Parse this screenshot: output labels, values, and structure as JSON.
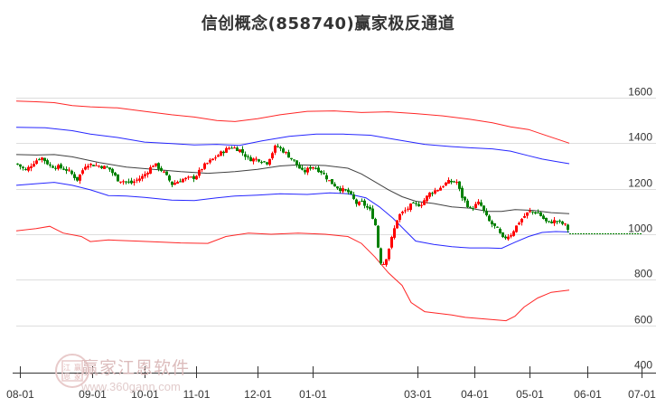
{
  "title": "信创概念(858740)赢家极反通道",
  "watermark": {
    "brand": "赢家江恩软件",
    "url": "www.360gann.com",
    "seal": [
      "江",
      "赢",
      "恩",
      "家"
    ]
  },
  "colors": {
    "up": "#ff0000",
    "down": "#008000",
    "outer_band": "#ff0000",
    "inner_band": "#0000ff",
    "mid_line": "#000000",
    "grid": "#dddddd",
    "last_price_line": "#008000"
  },
  "chart_data": {
    "type": "candlestick",
    "title": "信创概念(858740)赢家极反通道",
    "xlabel": "",
    "ylabel": "",
    "ylim": [
      400,
      1600
    ],
    "y_ticks": [
      1600,
      1400,
      1200,
      1000,
      800,
      600,
      400
    ],
    "x_ticks": [
      "08-01",
      "09-01",
      "10-01",
      "11-01",
      "12-01",
      "01-01",
      "03-01",
      "04-01",
      "05-01",
      "06-01",
      "07-01"
    ],
    "grid": true,
    "legend": "none",
    "series": [
      {
        "name": "upper_outer_band",
        "color": "#ff0000",
        "points": [
          [
            18,
            1585
          ],
          [
            40,
            1582
          ],
          [
            60,
            1578
          ],
          [
            80,
            1565
          ],
          [
            100,
            1560
          ],
          [
            130,
            1555
          ],
          [
            160,
            1540
          ],
          [
            190,
            1525
          ],
          [
            215,
            1515
          ],
          [
            240,
            1500
          ],
          [
            260,
            1495
          ],
          [
            285,
            1508
          ],
          [
            310,
            1525
          ],
          [
            340,
            1540
          ],
          [
            370,
            1542
          ],
          [
            400,
            1535
          ],
          [
            430,
            1538
          ],
          [
            460,
            1530
          ],
          [
            490,
            1520
          ],
          [
            520,
            1505
          ],
          [
            545,
            1490
          ],
          [
            565,
            1472
          ],
          [
            585,
            1460
          ],
          [
            600,
            1440
          ],
          [
            615,
            1420
          ],
          [
            630,
            1400
          ]
        ]
      },
      {
        "name": "upper_inner_band",
        "color": "#0000ff",
        "points": [
          [
            18,
            1470
          ],
          [
            50,
            1468
          ],
          [
            80,
            1455
          ],
          [
            100,
            1440
          ],
          [
            130,
            1425
          ],
          [
            160,
            1405
          ],
          [
            190,
            1398
          ],
          [
            215,
            1392
          ],
          [
            240,
            1395
          ],
          [
            265,
            1390
          ],
          [
            290,
            1410
          ],
          [
            320,
            1430
          ],
          [
            350,
            1440
          ],
          [
            380,
            1440
          ],
          [
            410,
            1435
          ],
          [
            440,
            1415
          ],
          [
            470,
            1395
          ],
          [
            500,
            1385
          ],
          [
            520,
            1380
          ],
          [
            545,
            1375
          ],
          [
            565,
            1365
          ],
          [
            585,
            1345
          ],
          [
            600,
            1330
          ],
          [
            615,
            1320
          ],
          [
            630,
            1310
          ]
        ]
      },
      {
        "name": "mid_line",
        "color": "#000000",
        "points": [
          [
            18,
            1350
          ],
          [
            40,
            1348
          ],
          [
            60,
            1350
          ],
          [
            80,
            1340
          ],
          [
            110,
            1315
          ],
          [
            140,
            1295
          ],
          [
            170,
            1285
          ],
          [
            200,
            1275
          ],
          [
            230,
            1268
          ],
          [
            260,
            1275
          ],
          [
            285,
            1285
          ],
          [
            310,
            1300
          ],
          [
            330,
            1305
          ],
          [
            360,
            1302
          ],
          [
            385,
            1290
          ],
          [
            400,
            1265
          ],
          [
            415,
            1230
          ],
          [
            430,
            1195
          ],
          [
            445,
            1165
          ],
          [
            460,
            1145
          ],
          [
            480,
            1135
          ],
          [
            500,
            1120
          ],
          [
            520,
            1115
          ],
          [
            540,
            1100
          ],
          [
            555,
            1100
          ],
          [
            570,
            1108
          ],
          [
            590,
            1105
          ],
          [
            610,
            1095
          ],
          [
            630,
            1090
          ]
        ]
      },
      {
        "name": "lower_inner_band",
        "color": "#0000ff",
        "points": [
          [
            18,
            1215
          ],
          [
            40,
            1222
          ],
          [
            60,
            1228
          ],
          [
            80,
            1215
          ],
          [
            100,
            1195
          ],
          [
            120,
            1170
          ],
          [
            140,
            1168
          ],
          [
            160,
            1162
          ],
          [
            190,
            1150
          ],
          [
            215,
            1148
          ],
          [
            240,
            1160
          ],
          [
            260,
            1168
          ],
          [
            285,
            1172
          ],
          [
            310,
            1178
          ],
          [
            340,
            1175
          ],
          [
            365,
            1182
          ],
          [
            385,
            1178
          ],
          [
            405,
            1160
          ],
          [
            420,
            1120
          ],
          [
            435,
            1070
          ],
          [
            450,
            1010
          ],
          [
            460,
            970
          ],
          [
            480,
            955
          ],
          [
            500,
            945
          ],
          [
            520,
            940
          ],
          [
            540,
            940
          ],
          [
            555,
            938
          ],
          [
            570,
            965
          ],
          [
            585,
            990
          ],
          [
            600,
            1008
          ],
          [
            615,
            1012
          ],
          [
            630,
            1010
          ]
        ]
      },
      {
        "name": "lower_outer_band",
        "color": "#ff0000",
        "points": [
          [
            18,
            1015
          ],
          [
            40,
            1025
          ],
          [
            55,
            1035
          ],
          [
            70,
            1005
          ],
          [
            90,
            990
          ],
          [
            100,
            968
          ],
          [
            120,
            975
          ],
          [
            150,
            970
          ],
          [
            180,
            965
          ],
          [
            200,
            962
          ],
          [
            230,
            960
          ],
          [
            250,
            990
          ],
          [
            275,
            1005
          ],
          [
            300,
            1000
          ],
          [
            330,
            1005
          ],
          [
            360,
            1000
          ],
          [
            385,
            990
          ],
          [
            400,
            960
          ],
          [
            415,
            900
          ],
          [
            430,
            830
          ],
          [
            445,
            775
          ],
          [
            455,
            700
          ],
          [
            470,
            660
          ],
          [
            500,
            645
          ],
          [
            515,
            635
          ],
          [
            530,
            630
          ],
          [
            545,
            625
          ],
          [
            560,
            620
          ],
          [
            570,
            640
          ],
          [
            580,
            680
          ],
          [
            595,
            720
          ],
          [
            610,
            745
          ],
          [
            630,
            755
          ]
        ]
      },
      {
        "name": "close_path",
        "color": "#000000",
        "points": [
          [
            18,
            1310
          ],
          [
            28,
            1280
          ],
          [
            38,
            1320
          ],
          [
            45,
            1340
          ],
          [
            55,
            1300
          ],
          [
            65,
            1295
          ],
          [
            75,
            1280
          ],
          [
            85,
            1240
          ],
          [
            95,
            1310
          ],
          [
            110,
            1300
          ],
          [
            120,
            1290
          ],
          [
            130,
            1240
          ],
          [
            145,
            1225
          ],
          [
            158,
            1255
          ],
          [
            170,
            1310
          ],
          [
            180,
            1275
          ],
          [
            190,
            1220
          ],
          [
            200,
            1240
          ],
          [
            215,
            1250
          ],
          [
            225,
            1300
          ],
          [
            235,
            1330
          ],
          [
            245,
            1360
          ],
          [
            255,
            1385
          ],
          [
            265,
            1370
          ],
          [
            275,
            1330
          ],
          [
            285,
            1330
          ],
          [
            295,
            1315
          ],
          [
            305,
            1390
          ],
          [
            315,
            1360
          ],
          [
            325,
            1320
          ],
          [
            335,
            1270
          ],
          [
            345,
            1300
          ],
          [
            355,
            1275
          ],
          [
            365,
            1230
          ],
          [
            375,
            1200
          ],
          [
            385,
            1185
          ],
          [
            395,
            1130
          ],
          [
            400,
            1140
          ],
          [
            410,
            1100
          ],
          [
            415,
            1040
          ],
          [
            420,
            880
          ],
          [
            425,
            870
          ],
          [
            430,
            940
          ],
          [
            440,
            1080
          ],
          [
            450,
            1110
          ],
          [
            455,
            1130
          ],
          [
            465,
            1130
          ],
          [
            475,
            1180
          ],
          [
            485,
            1200
          ],
          [
            495,
            1230
          ],
          [
            505,
            1230
          ],
          [
            510,
            1170
          ],
          [
            520,
            1110
          ],
          [
            530,
            1140
          ],
          [
            540,
            1060
          ],
          [
            550,
            1020
          ],
          [
            556,
            980
          ],
          [
            565,
            1000
          ],
          [
            575,
            1060
          ],
          [
            585,
            1100
          ],
          [
            595,
            1095
          ],
          [
            605,
            1050
          ],
          [
            615,
            1060
          ],
          [
            625,
            1040
          ],
          [
            630,
            1010
          ]
        ]
      }
    ],
    "last_price": 1005,
    "last_price_line_x": [
      630,
      710
    ]
  }
}
